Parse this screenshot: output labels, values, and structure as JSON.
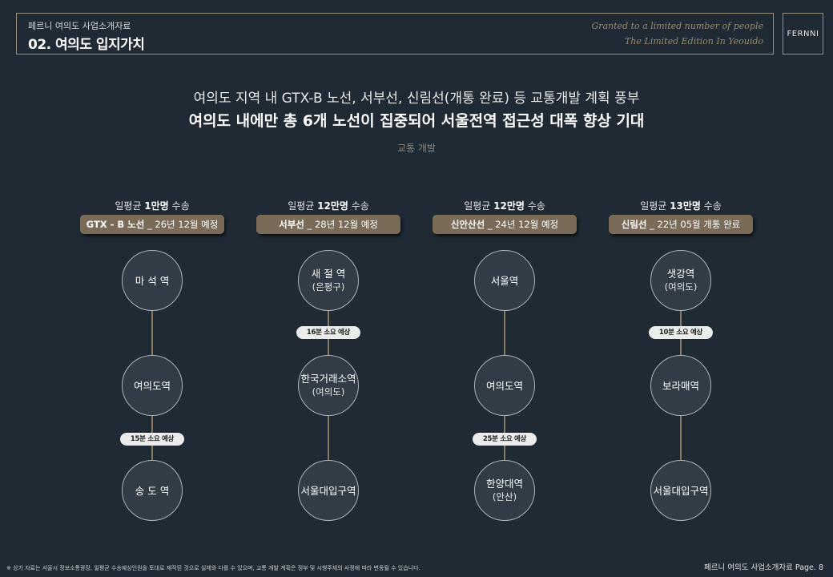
{
  "header": {
    "subtitle": "페르니 여의도 사업소개자료",
    "title": "02. 여의도 입지가치",
    "script_line1": "Granted to a limited number of people",
    "script_line2": "The Limited Edition In Yeouido",
    "logo": "FERNNI"
  },
  "headline": {
    "line1": "여의도 지역 내 GTX-B 노선, 서부선, 신림선(개통 완료) 등 교통개발 계획 풍부",
    "line2": "여의도 내에만 총 6개 노선이 집중되어 서울전역 접근성 대폭 향상 기대"
  },
  "section_label": "교통 개발",
  "lines": [
    {
      "capacity_prefix": "일평균 ",
      "capacity_value": "1만명",
      "capacity_suffix": " 수송",
      "name": "GTX - B 노선",
      "date": " _ 26년 12월 예정",
      "stations": [
        {
          "name": "마 석 역",
          "sub": ""
        },
        {
          "name": "여의도역",
          "sub": ""
        },
        {
          "name": "송 도 역",
          "sub": ""
        }
      ],
      "travel_time": "15분 소요 예상"
    },
    {
      "capacity_prefix": "일평균 ",
      "capacity_value": "12만명",
      "capacity_suffix": " 수송",
      "name": "서부선",
      "date": " _ 28년 12월 예정",
      "stations": [
        {
          "name": "새 절 역",
          "sub": "(은평구)"
        },
        {
          "name": "한국거래소역",
          "sub": "(여의도)"
        },
        {
          "name": "서울대입구역",
          "sub": ""
        }
      ],
      "travel_time": "16분 소요 예상"
    },
    {
      "capacity_prefix": "일평균 ",
      "capacity_value": "12만명",
      "capacity_suffix": " 수송",
      "name": "신안산선",
      "date": " _ 24년 12월 예정",
      "stations": [
        {
          "name": "서울역",
          "sub": ""
        },
        {
          "name": "여의도역",
          "sub": ""
        },
        {
          "name": "한양대역",
          "sub": "(안산)"
        }
      ],
      "travel_time": "25분 소요 예상"
    },
    {
      "capacity_prefix": "일평균 ",
      "capacity_value": "13만명",
      "capacity_suffix": " 수송",
      "name": "신림선",
      "date": " _ 22년 05월 개통 완료",
      "stations": [
        {
          "name": "샛강역",
          "sub": "(여의도)"
        },
        {
          "name": "보라매역",
          "sub": ""
        },
        {
          "name": "서울대입구역",
          "sub": ""
        }
      ],
      "travel_time": "10분 소요 예상"
    }
  ],
  "footnote": "※ 상기 자료는 서울시 정보소통광장, 일평균 수송예상인원을 토대로 제작된 것으로 실제와 다를 수 있으며, 교통 개발 계획은 정부 및 시행주체의 사정에 따라 변동될 수 있습니다.",
  "page_info": "페르니 여의도 사업소개자료 Page. 8"
}
